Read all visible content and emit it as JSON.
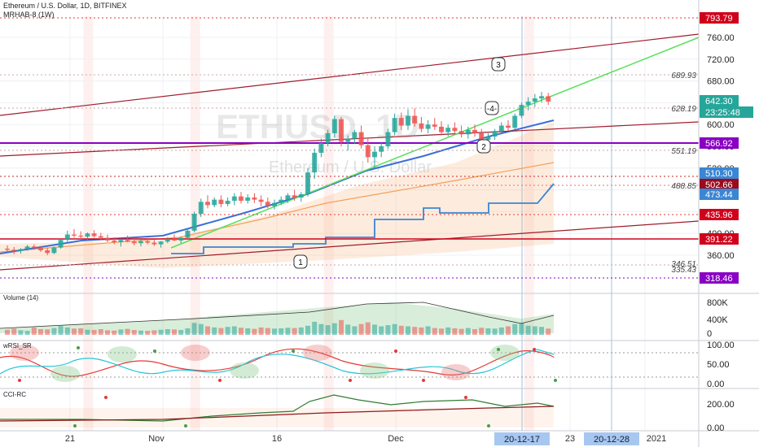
{
  "header": {
    "title": "Ethereum / U.S. Dollar, 1D, BITFINEX",
    "indicator": "MRHAB-8 (1W)"
  },
  "watermark": {
    "symbol": "ETHUSD, 1D",
    "name": "Ethereum / U.S. Dollar"
  },
  "panes": {
    "volume": "Volume (14)",
    "wrsi": "wRSI_SR",
    "cci": "CCI-RC"
  },
  "colors": {
    "up": "#26a69a",
    "down": "#ef5350",
    "red_tag": "#d0021b",
    "teal_tag": "#26a69a",
    "blue_tag": "#3a86d4",
    "purple": "#8a00c4",
    "green_line": "#57e05a",
    "trend_line": "#a01c2c"
  },
  "chart_data": [
    {
      "type": "candlestick",
      "pane": "price",
      "y_ticks": [
        360,
        400,
        440,
        480,
        520,
        560,
        600,
        640,
        680,
        720,
        760
      ],
      "ylim": [
        300,
        800
      ],
      "x_labels": [
        "21",
        "Nov",
        "16",
        "Dec",
        "23",
        "2021"
      ],
      "x_highlight_labels": [
        "20-12-17",
        "20-12-28"
      ],
      "current_price": "642.30",
      "countdown": "23:25:48",
      "price_tags": [
        {
          "value": "793.79",
          "style": "red"
        },
        {
          "value": "566.92",
          "style": "purple"
        },
        {
          "value": "510.30",
          "style": "blue"
        },
        {
          "value": "502.66",
          "style": "darkred"
        },
        {
          "value": "473.44",
          "style": "blue"
        },
        {
          "value": "435.96",
          "style": "red"
        },
        {
          "value": "391.22",
          "style": "red"
        },
        {
          "value": "318.46",
          "style": "purple"
        }
      ],
      "level_labels": [
        "689.93",
        "628.19",
        "551.19",
        "488.85",
        "346.51",
        "335.43"
      ],
      "wave_labels": [
        "1",
        "2",
        "3",
        "-4-"
      ],
      "candles": [
        [
          372,
          378,
          366,
          370
        ],
        [
          370,
          375,
          362,
          368
        ],
        [
          368,
          373,
          363,
          371
        ],
        [
          371,
          379,
          368,
          376
        ],
        [
          376,
          380,
          370,
          373
        ],
        [
          373,
          377,
          366,
          369
        ],
        [
          369,
          374,
          360,
          364
        ],
        [
          364,
          376,
          362,
          374
        ],
        [
          374,
          390,
          372,
          388
        ],
        [
          388,
          405,
          384,
          398
        ],
        [
          398,
          408,
          392,
          396
        ],
        [
          396,
          404,
          388,
          394
        ],
        [
          394,
          402,
          386,
          400
        ],
        [
          400,
          406,
          392,
          395
        ],
        [
          395,
          401,
          388,
          392
        ],
        [
          392,
          398,
          384,
          387
        ],
        [
          387,
          393,
          380,
          384
        ],
        [
          384,
          390,
          376,
          388
        ],
        [
          388,
          396,
          384,
          385
        ],
        [
          385,
          391,
          378,
          382
        ],
        [
          382,
          389,
          376,
          386
        ],
        [
          386,
          392,
          380,
          383
        ],
        [
          383,
          388,
          377,
          380
        ],
        [
          380,
          386,
          374,
          385
        ],
        [
          385,
          393,
          382,
          390
        ],
        [
          390,
          398,
          386,
          387
        ],
        [
          387,
          394,
          382,
          392
        ],
        [
          392,
          410,
          390,
          405
        ],
        [
          405,
          440,
          402,
          436
        ],
        [
          436,
          464,
          430,
          458
        ],
        [
          458,
          470,
          446,
          452
        ],
        [
          452,
          466,
          448,
          462
        ],
        [
          462,
          470,
          448,
          454
        ],
        [
          454,
          466,
          450,
          460
        ],
        [
          460,
          474,
          452,
          468
        ],
        [
          468,
          476,
          455,
          460
        ],
        [
          460,
          472,
          455,
          466
        ],
        [
          466,
          474,
          456,
          462
        ],
        [
          462,
          470,
          450,
          458
        ],
        [
          458,
          466,
          446,
          450
        ],
        [
          450,
          462,
          444,
          456
        ],
        [
          456,
          468,
          452,
          462
        ],
        [
          462,
          474,
          456,
          470
        ],
        [
          470,
          480,
          460,
          466
        ],
        [
          466,
          476,
          458,
          472
        ],
        [
          472,
          520,
          468,
          512
        ],
        [
          512,
          556,
          500,
          548
        ],
        [
          548,
          574,
          540,
          566
        ],
        [
          566,
          590,
          560,
          584
        ],
        [
          584,
          616,
          576,
          610
        ],
        [
          610,
          614,
          560,
          568
        ],
        [
          568,
          580,
          552,
          574
        ],
        [
          574,
          590,
          564,
          586
        ],
        [
          586,
          598,
          556,
          562
        ],
        [
          562,
          576,
          530,
          540
        ],
        [
          540,
          560,
          520,
          550
        ],
        [
          550,
          568,
          540,
          560
        ],
        [
          560,
          592,
          555,
          586
        ],
        [
          586,
          620,
          580,
          612
        ],
        [
          612,
          622,
          590,
          598
        ],
        [
          598,
          628,
          590,
          616
        ],
        [
          616,
          630,
          596,
          602
        ],
        [
          602,
          614,
          586,
          592
        ],
        [
          592,
          608,
          584,
          600
        ],
        [
          600,
          612,
          590,
          596
        ],
        [
          596,
          606,
          580,
          586
        ],
        [
          586,
          600,
          578,
          594
        ],
        [
          594,
          604,
          582,
          588
        ],
        [
          588,
          598,
          576,
          582
        ],
        [
          582,
          596,
          574,
          590
        ],
        [
          590,
          600,
          578,
          584
        ],
        [
          584,
          592,
          566,
          572
        ],
        [
          572,
          584,
          560,
          578
        ],
        [
          578,
          592,
          572,
          588
        ],
        [
          588,
          604,
          584,
          598
        ],
        [
          598,
          608,
          588,
          594
        ],
        [
          594,
          620,
          590,
          616
        ],
        [
          616,
          640,
          612,
          636
        ],
        [
          636,
          650,
          626,
          642
        ],
        [
          642,
          656,
          632,
          648
        ],
        [
          648,
          660,
          640,
          652
        ],
        [
          652,
          658,
          636,
          642
        ]
      ],
      "volume": [
        180,
        220,
        160,
        140,
        260,
        200,
        190,
        240,
        310,
        260,
        220,
        230,
        180,
        170,
        200,
        160,
        150,
        190,
        210,
        170,
        150,
        140,
        160,
        180,
        200,
        190,
        170,
        230,
        420,
        380,
        300,
        260,
        240,
        280,
        300,
        250,
        230,
        210,
        260,
        240,
        220,
        230,
        250,
        240,
        260,
        320,
        460,
        380,
        340,
        410,
        520,
        360,
        300,
        380,
        440,
        360,
        300,
        340,
        380,
        320,
        300,
        280,
        260,
        300,
        240,
        220,
        260,
        230,
        210,
        240,
        200,
        250,
        230,
        220,
        260,
        300,
        380,
        420,
        320,
        300,
        280,
        220
      ],
      "volume_ticks": [
        "800K",
        "400K",
        "0"
      ],
      "wrsi_ticks": [
        "100.00",
        "50.00",
        "0.00"
      ],
      "cci_ticks": [
        "200.00",
        "0.00"
      ]
    }
  ]
}
